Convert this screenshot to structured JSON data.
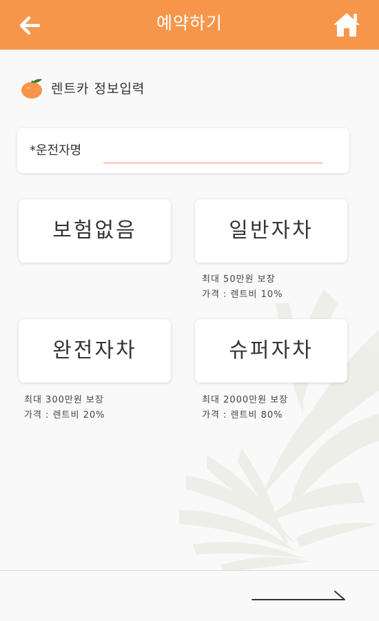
{
  "header": {
    "title": "예약하기",
    "back_icon": "arrow-left-icon",
    "home_icon": "home-icon",
    "color": "#f7954a"
  },
  "section": {
    "icon": "tangerine-icon",
    "title": "렌트카 정보입력"
  },
  "driver": {
    "label": "*운전자명",
    "value": "",
    "underline_color": "#f48a6a"
  },
  "insurance_options": [
    {
      "label": "보험없음",
      "desc_line1": "",
      "desc_line2": ""
    },
    {
      "label": "일반자차",
      "desc_line1": "최대 50만원 보장",
      "desc_line2": "가격 : 렌트비 10%"
    },
    {
      "label": "완전자차",
      "desc_line1": "최대 300만원 보장",
      "desc_line2": "가격 : 렌트비 20%"
    },
    {
      "label": "슈퍼자차",
      "desc_line1": "최대 2000만원 보장",
      "desc_line2": "가격 : 렌트비 80%"
    }
  ],
  "footer": {
    "next_icon": "long-arrow-right-icon"
  }
}
